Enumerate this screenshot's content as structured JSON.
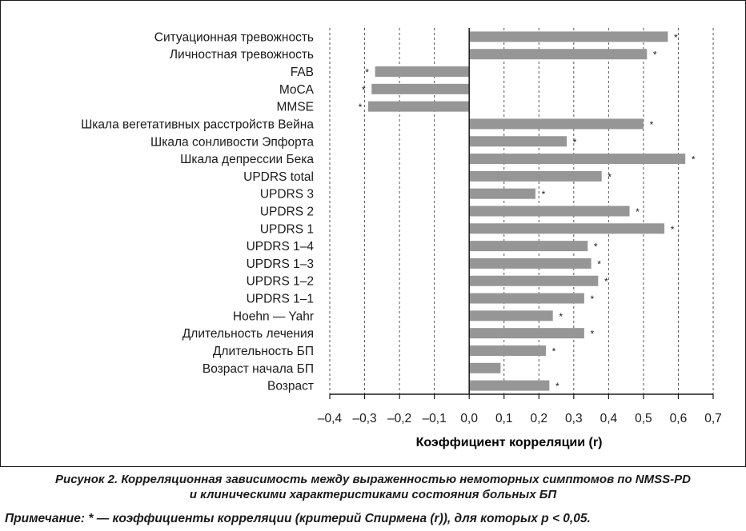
{
  "chart_data": {
    "type": "bar",
    "orientation": "horizontal",
    "categories": [
      "Ситуационная тревожность",
      "Личностная тревожность",
      "FAB",
      "MoCA",
      "MMSE",
      "Шкала вегетативных расстройств Вейна",
      "Шкала сонливости Эпфорта",
      "Шкала депрессии Бека",
      "UPDRS total",
      "UPDRS 3",
      "UPDRS 2",
      "UPDRS 1",
      "UPDRS 1–4",
      "UPDRS 1–3",
      "UPDRS 1–2",
      "UPDRS 1–1",
      "Hoehn — Yahr",
      "Длительность лечения",
      "Длительность БП",
      "Возраст начала БП",
      "Возраст"
    ],
    "values": [
      0.57,
      0.51,
      -0.27,
      -0.28,
      -0.29,
      0.5,
      0.28,
      0.62,
      0.38,
      0.19,
      0.46,
      0.56,
      0.34,
      0.35,
      0.37,
      0.33,
      0.24,
      0.33,
      0.22,
      0.09,
      0.23
    ],
    "significant": [
      true,
      true,
      true,
      true,
      true,
      true,
      true,
      true,
      true,
      true,
      true,
      true,
      true,
      true,
      true,
      true,
      true,
      true,
      true,
      false,
      true
    ],
    "significance_marker": "*",
    "xlabel": "Коэффициент корреляции (r)",
    "xlim": [
      -0.4,
      0.7
    ],
    "xticks": [
      -0.4,
      -0.3,
      -0.2,
      -0.1,
      0.0,
      0.1,
      0.2,
      0.3,
      0.4,
      0.5,
      0.6,
      0.7
    ],
    "xtick_labels": [
      "–0,4",
      "–0,3",
      "–0,2",
      "–0,1",
      "0,0",
      "0,1",
      "0,2",
      "0,3",
      "0,4",
      "0,5",
      "0,6",
      "0,7"
    ],
    "grid": "vertical dashed",
    "bar_color": "#969696"
  },
  "caption": {
    "line1": "Рисунок 2. Корреляционная зависимость между выраженностью немоторных симптомов по NMSS-PD",
    "line2": "и клиническими характеристиками состояния больных БП"
  },
  "note": "Примечание: * — коэффициенты корреляции (критерий Спирмена (r)), для которых p < 0,05."
}
